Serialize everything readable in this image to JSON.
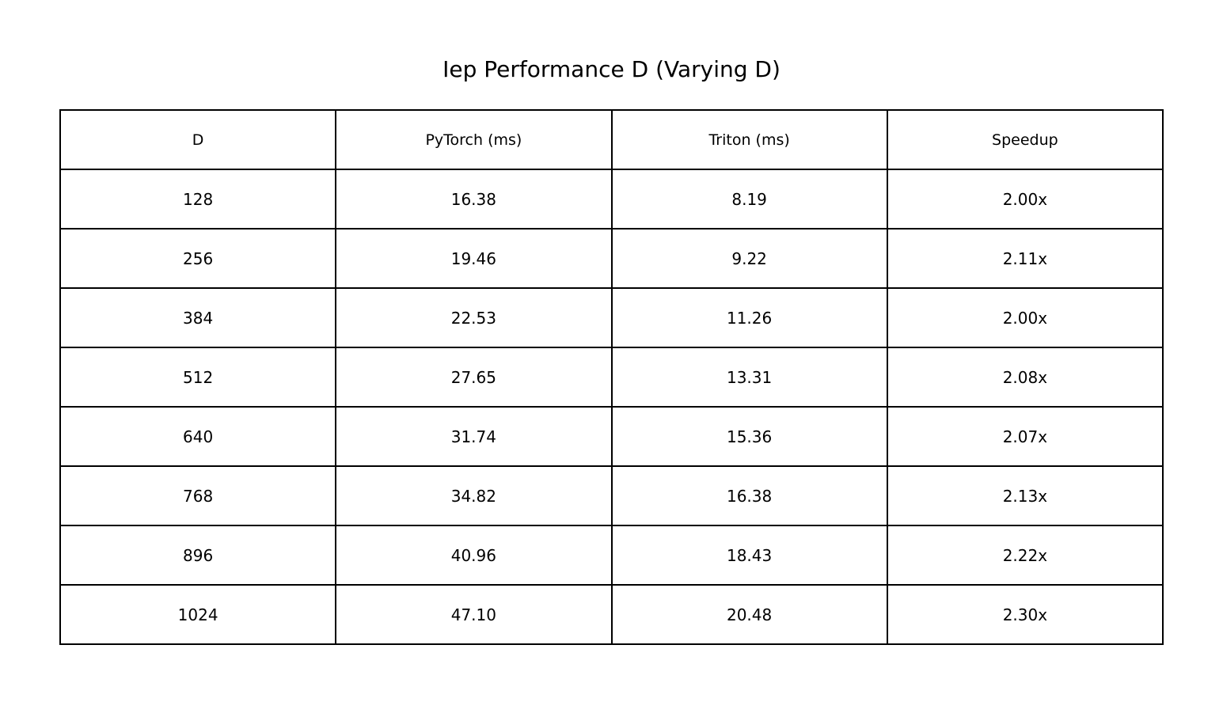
{
  "chart_data": {
    "type": "table",
    "title": "Iep Performance D (Varying D)",
    "columns": [
      "D",
      "PyTorch (ms)",
      "Triton (ms)",
      "Speedup"
    ],
    "rows": [
      [
        "128",
        "16.38",
        "8.19",
        "2.00x"
      ],
      [
        "256",
        "19.46",
        "9.22",
        "2.11x"
      ],
      [
        "384",
        "22.53",
        "11.26",
        "2.00x"
      ],
      [
        "512",
        "27.65",
        "13.31",
        "2.08x"
      ],
      [
        "640",
        "31.74",
        "15.36",
        "2.07x"
      ],
      [
        "768",
        "34.82",
        "16.38",
        "2.13x"
      ],
      [
        "896",
        "40.96",
        "18.43",
        "2.22x"
      ],
      [
        "1024",
        "47.10",
        "20.48",
        "2.30x"
      ]
    ]
  }
}
